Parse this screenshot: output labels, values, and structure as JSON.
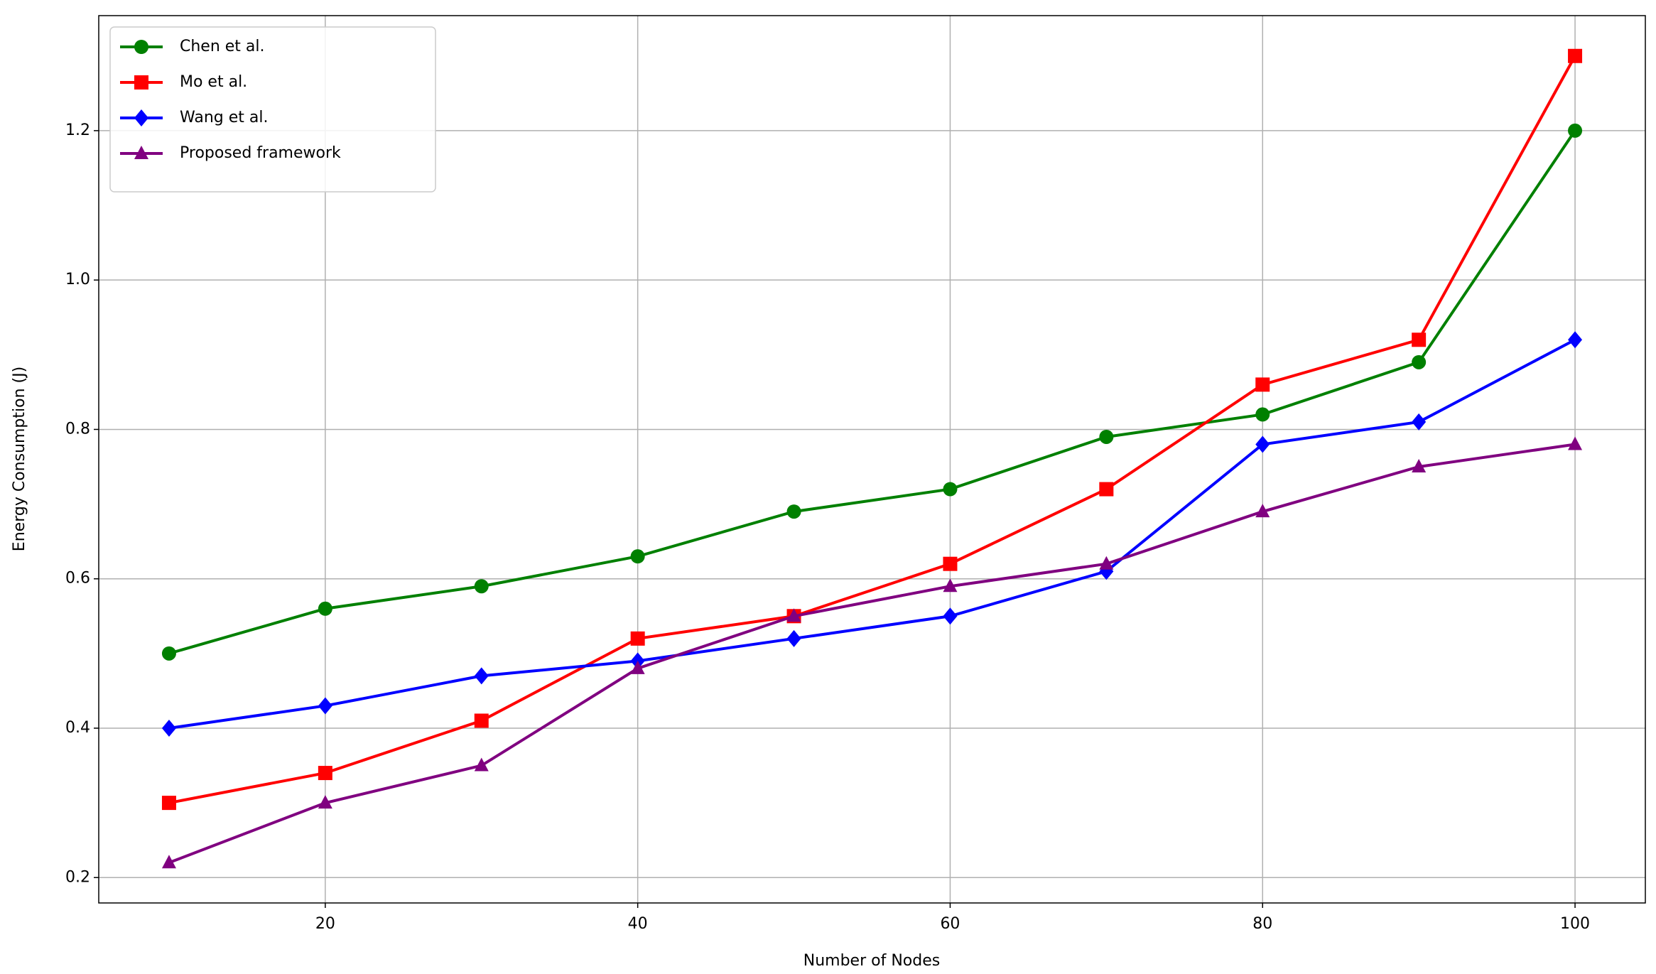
{
  "chart_data": {
    "type": "line",
    "x_label": "Number of Nodes",
    "y_label": "Energy Consumption (J)",
    "x": [
      10,
      20,
      30,
      40,
      50,
      60,
      70,
      80,
      90,
      100
    ],
    "series": [
      {
        "name": "Chen et al.",
        "color": "#008000",
        "marker": "circle",
        "values": [
          0.5,
          0.56,
          0.59,
          0.63,
          0.69,
          0.72,
          0.79,
          0.82,
          0.89,
          1.2
        ]
      },
      {
        "name": "Mo et al.",
        "color": "#ff0000",
        "marker": "square",
        "values": [
          0.3,
          0.34,
          0.41,
          0.52,
          0.55,
          0.62,
          0.72,
          0.86,
          0.92,
          1.3
        ]
      },
      {
        "name": "Wang et al.",
        "color": "#0000ff",
        "marker": "diamond",
        "values": [
          0.4,
          0.43,
          0.47,
          0.49,
          0.52,
          0.55,
          0.61,
          0.78,
          0.81,
          0.92
        ]
      },
      {
        "name": "Proposed framework",
        "color": "#800080",
        "marker": "triangle",
        "values": [
          0.22,
          0.3,
          0.35,
          0.48,
          0.55,
          0.59,
          0.62,
          0.69,
          0.75,
          0.78
        ]
      }
    ],
    "xlim": [
      5.5,
      104.5
    ],
    "ylim": [
      0.166,
      1.354
    ],
    "xticks": [
      20,
      40,
      60,
      80,
      100
    ],
    "yticks": [
      0.2,
      0.4,
      0.6,
      0.8,
      {
        "value": 1,
        "label": "1.0"
      },
      1.2
    ],
    "grid": true,
    "legend": "upper left"
  }
}
